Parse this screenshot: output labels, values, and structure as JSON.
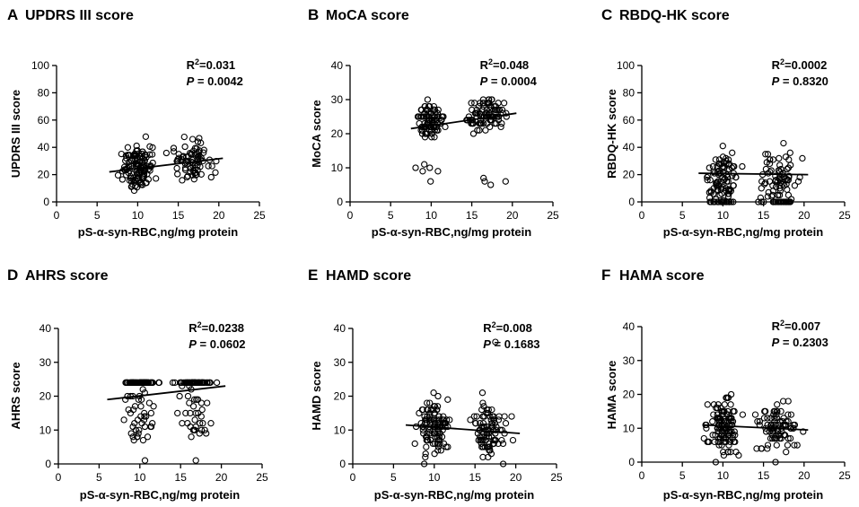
{
  "chart_data": [
    {
      "type": "scatter",
      "letter": "A",
      "title": "UPDRS III score",
      "xlabel": "pS-α-syn-RBC,ng/mg protein",
      "ylabel": "UPDRS III score",
      "xlim": [
        0,
        25
      ],
      "ylim": [
        0,
        100
      ],
      "xticks": [
        "0",
        "5",
        "10",
        "15",
        "20",
        "25"
      ],
      "yticks": [
        "0",
        "20",
        "40",
        "60",
        "80",
        "100"
      ],
      "r2": "0.031",
      "p_value": "0.0042",
      "fit": {
        "x": [
          6.5,
          20.5
        ],
        "y": [
          22,
          32
        ]
      },
      "seed": 11,
      "n": 200,
      "y_model": "updrs"
    },
    {
      "type": "scatter",
      "letter": "B",
      "title": "MoCA score",
      "xlabel": "pS-α-syn-RBC,ng/mg protein",
      "ylabel": "MoCA score",
      "xlim": [
        0,
        25
      ],
      "ylim": [
        0,
        40
      ],
      "xticks": [
        "0",
        "5",
        "10",
        "15",
        "20",
        "25"
      ],
      "yticks": [
        "0",
        "10",
        "20",
        "30",
        "40"
      ],
      "r2": "0.048",
      "p_value": "0.0004",
      "fit": {
        "x": [
          7.5,
          20.5
        ],
        "y": [
          21.5,
          26
        ]
      },
      "seed": 23,
      "n": 200,
      "y_model": "moca"
    },
    {
      "type": "scatter",
      "letter": "C",
      "title": "RBDQ-HK score",
      "xlabel": "pS-α-syn-RBC,ng/mg protein",
      "ylabel": "RBDQ-HK score",
      "xlim": [
        0,
        25
      ],
      "ylim": [
        0,
        100
      ],
      "xticks": [
        "0",
        "5",
        "10",
        "15",
        "20",
        "25"
      ],
      "yticks": [
        "0",
        "20",
        "40",
        "60",
        "80",
        "100"
      ],
      "r2": "0.0002",
      "p_value": "0.8320",
      "fit": {
        "x": [
          7,
          20.5
        ],
        "y": [
          21,
          20
        ]
      },
      "seed": 37,
      "n": 200,
      "y_model": "rbdq"
    },
    {
      "type": "scatter",
      "letter": "D",
      "title": "AHRS score",
      "xlabel": "pS-α-syn-RBC,ng/mg protein",
      "ylabel": "AHRS score",
      "xlim": [
        0,
        25
      ],
      "ylim": [
        0,
        40
      ],
      "xticks": [
        "0",
        "5",
        "10",
        "15",
        "20",
        "25"
      ],
      "yticks": [
        "0",
        "10",
        "20",
        "30",
        "40"
      ],
      "r2": "0.0238",
      "p_value": "0.0602",
      "fit": {
        "x": [
          6,
          20.5
        ],
        "y": [
          19,
          23
        ]
      },
      "seed": 41,
      "n": 200,
      "y_model": "ahrs"
    },
    {
      "type": "scatter",
      "letter": "E",
      "title": "HAMD score",
      "xlabel": "pS-α-syn-RBC,ng/mg protein",
      "ylabel": "HAMD score",
      "xlim": [
        0,
        25
      ],
      "ylim": [
        0,
        40
      ],
      "xticks": [
        "0",
        "5",
        "10",
        "15",
        "20",
        "25"
      ],
      "yticks": [
        "0",
        "10",
        "20",
        "30",
        "40"
      ],
      "r2": "0.008",
      "p_value": "0.1683",
      "fit": {
        "x": [
          6.5,
          20.5
        ],
        "y": [
          11.5,
          9
        ]
      },
      "seed": 53,
      "n": 200,
      "y_model": "hamd"
    },
    {
      "type": "scatter",
      "letter": "F",
      "title": "HAMA score",
      "xlabel": "pS-α-syn-RBC,ng/mg protein",
      "ylabel": "HAMA score",
      "xlim": [
        0,
        25
      ],
      "ylim": [
        0,
        40
      ],
      "xticks": [
        "0",
        "5",
        "10",
        "15",
        "20",
        "25"
      ],
      "yticks": [
        "0",
        "10",
        "20",
        "30",
        "40"
      ],
      "r2": "0.007",
      "p_value": "0.2303",
      "fit": {
        "x": [
          7.5,
          20.5
        ],
        "y": [
          11,
          9.5
        ]
      },
      "seed": 67,
      "n": 200,
      "y_model": "hama"
    }
  ]
}
